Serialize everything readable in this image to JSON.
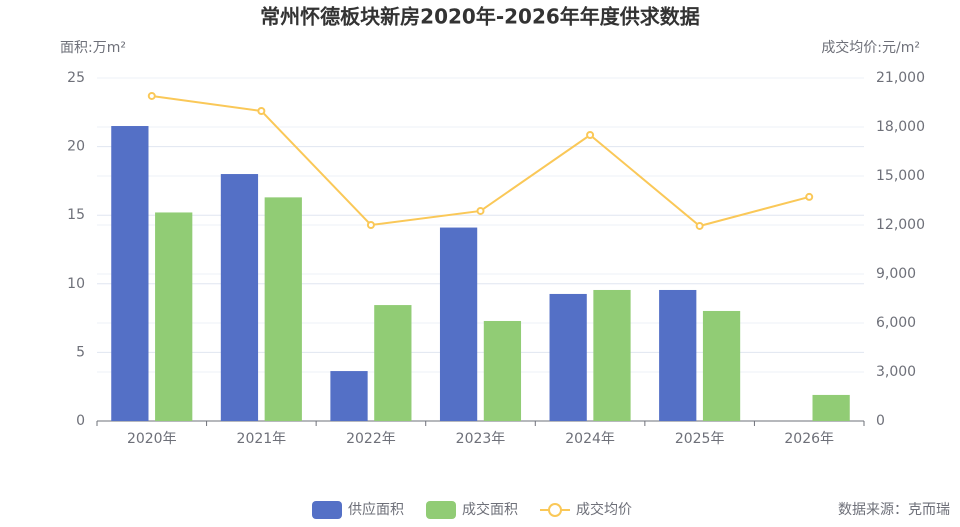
{
  "chart_data": {
    "type": "bar-line",
    "title": "常州怀德板块新房2020年-2026年年度供求数据",
    "y_label": "面积:万m²",
    "y2_label": "成交均价:元/m²",
    "source": "数据来源：克而瑞",
    "categories": [
      "2020年",
      "2021年",
      "2022年",
      "2023年",
      "2024年",
      "2025年",
      "2026年"
    ],
    "series": [
      {
        "name": "供应面积",
        "color": "#5470c6",
        "type": "bar",
        "values": [
          21.5,
          18.0,
          3.64,
          14.1,
          9.26,
          9.55,
          0
        ]
      },
      {
        "name": "成交面积",
        "color": "#91cc75",
        "type": "bar",
        "values": [
          15.2,
          16.3,
          8.45,
          7.29,
          9.55,
          8.02,
          1.9
        ]
      },
      {
        "name": "成交均价",
        "color": "#fac858",
        "type": "line",
        "axis": "y2",
        "values": [
          19900,
          18980,
          12000,
          12860,
          17510,
          11940,
          13720
        ]
      }
    ],
    "ylim": [
      0,
      25
    ],
    "yticks": [
      0,
      5,
      10,
      15,
      20,
      25
    ],
    "y2lim": [
      0,
      21000
    ],
    "y2ticks": [
      0,
      {
        "value": 3000,
        "label": "3,000"
      },
      {
        "value": 6000,
        "label": "6,000"
      },
      {
        "value": 9000,
        "label": "9,000"
      },
      {
        "value": 12000,
        "label": "12,000"
      },
      {
        "value": 15000,
        "label": "15,000"
      },
      {
        "value": 18000,
        "label": "18,000"
      },
      {
        "value": 21000,
        "label": "21,000"
      }
    ],
    "grid": true
  }
}
